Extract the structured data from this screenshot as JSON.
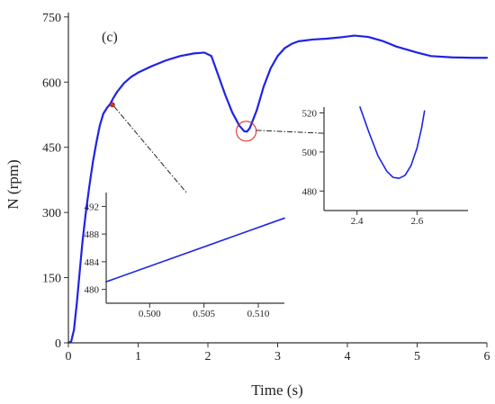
{
  "colors": {
    "curve": "#1f23e6",
    "marker": "#e0302a",
    "axis": "#333333",
    "arrow": "#222222"
  },
  "chart_data": [
    {
      "id": "main",
      "type": "line",
      "title": "",
      "panel_label": "(c)",
      "xlabel": "Time (s)",
      "ylabel": "N (rpm)",
      "xlim": [
        0,
        6
      ],
      "ylim": [
        0,
        760
      ],
      "xticks": [
        0,
        1,
        2,
        3,
        4,
        5,
        6
      ],
      "xtick_labels": [
        "0",
        "1",
        "2",
        "3",
        "4",
        "5",
        "6"
      ],
      "yticks": [
        0,
        150,
        300,
        450,
        600,
        750
      ],
      "ytick_labels": [
        "0",
        "150",
        "300",
        "450",
        "600",
        "750"
      ],
      "series": [
        {
          "x": [
            0,
            0.04,
            0.08,
            0.12,
            0.16,
            0.2,
            0.25,
            0.3,
            0.35,
            0.4,
            0.45,
            0.5,
            0.55,
            0.6,
            0.65,
            0.7,
            0.8,
            0.9,
            1.0,
            1.2,
            1.4,
            1.6,
            1.8,
            1.95,
            2.05,
            2.15,
            2.25,
            2.35,
            2.45,
            2.52,
            2.56,
            2.6,
            2.7,
            2.8,
            2.9,
            3.0,
            3.1,
            3.2,
            3.3,
            3.5,
            3.7,
            3.9,
            4.1,
            4.3,
            4.5,
            4.7,
            5.0,
            5.2,
            5.5,
            5.8,
            6.0
          ],
          "y": [
            0,
            3,
            30,
            90,
            160,
            230,
            300,
            360,
            415,
            460,
            500,
            527,
            540,
            550,
            565,
            578,
            598,
            612,
            622,
            637,
            650,
            660,
            666,
            668,
            660,
            615,
            570,
            530,
            500,
            487,
            486,
            494,
            535,
            590,
            632,
            660,
            678,
            688,
            694,
            698,
            700,
            703,
            707,
            704,
            695,
            682,
            668,
            660,
            657,
            656,
            656
          ]
        }
      ],
      "markers": [
        {
          "x": 0.63,
          "y": 548
        }
      ],
      "highlights": [
        {
          "x": 2.55,
          "y": 487
        }
      ]
    },
    {
      "id": "inset_zoom_start",
      "type": "line",
      "xlim": [
        0.496,
        0.5124
      ],
      "ylim": [
        478,
        494
      ],
      "xticks": [
        0.5,
        0.505,
        0.51
      ],
      "xtick_labels": [
        "0.500",
        "0.505",
        "0.510"
      ],
      "yticks": [
        480,
        484,
        488,
        492
      ],
      "ytick_labels": [
        "480",
        "484",
        "488",
        "492"
      ],
      "series": [
        {
          "x": [
            0.496,
            0.5124
          ],
          "y": [
            481.1,
            490.3
          ]
        }
      ]
    },
    {
      "id": "inset_zoom_dip",
      "type": "line",
      "xlim": [
        2.29,
        2.77
      ],
      "ylim": [
        470,
        523
      ],
      "xticks": [
        2.4,
        2.6
      ],
      "xtick_labels": [
        "2.4",
        "2.6"
      ],
      "yticks": [
        480,
        500,
        520
      ],
      "ytick_labels": [
        "480",
        "500",
        "520"
      ],
      "series": [
        {
          "x": [
            2.41,
            2.44,
            2.47,
            2.5,
            2.52,
            2.54,
            2.56,
            2.58,
            2.6,
            2.615,
            2.625
          ],
          "y": [
            523,
            510,
            498,
            490,
            487,
            486.5,
            488,
            493,
            502,
            512,
            521
          ]
        }
      ]
    }
  ]
}
